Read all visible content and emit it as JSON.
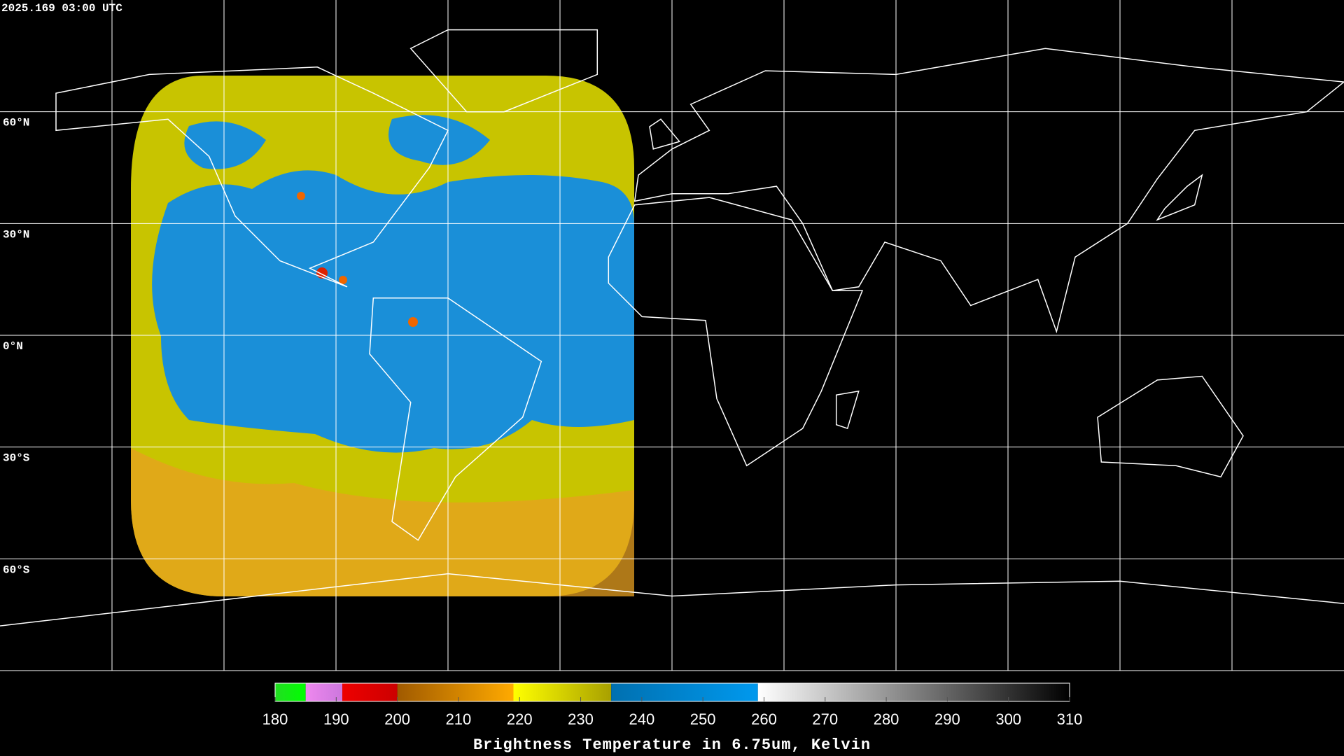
{
  "header": {
    "timestamp": "2025.169 03:00 UTC"
  },
  "map": {
    "lat_grid": [
      {
        "value": 60,
        "label": "60°N"
      },
      {
        "value": 30,
        "label": "30°N"
      },
      {
        "value": 0,
        "label": "0°N"
      },
      {
        "value": -30,
        "label": "30°S"
      },
      {
        "value": -60,
        "label": "60°S"
      }
    ],
    "lon_grid": [
      -150,
      -120,
      -90,
      -60,
      -30,
      0,
      30,
      60,
      90,
      120,
      150
    ],
    "lonlim": [
      -180,
      180
    ],
    "latlim": [
      -90,
      90
    ]
  },
  "colorbar": {
    "title": "Brightness Temperature in 6.75um, Kelvin",
    "range": [
      180,
      310
    ],
    "ticks": [
      180,
      190,
      200,
      210,
      220,
      230,
      240,
      250,
      260,
      270,
      280,
      290,
      300,
      310
    ],
    "segments": [
      {
        "from": 180,
        "to": 185,
        "colors": [
          "#22dd22",
          "#00ff00"
        ]
      },
      {
        "from": 185,
        "to": 191,
        "colors": [
          "#ee88ee",
          "#cc77dd"
        ]
      },
      {
        "from": 191,
        "to": 200,
        "colors": [
          "#ee0000",
          "#cc0000"
        ]
      },
      {
        "from": 200,
        "to": 219,
        "colors": [
          "#a05a00",
          "#ffaa00"
        ]
      },
      {
        "from": 219,
        "to": 235,
        "colors": [
          "#ffff00",
          "#a8a000"
        ]
      },
      {
        "from": 235,
        "to": 259,
        "colors": [
          "#0070b0",
          "#0099ee"
        ]
      },
      {
        "from": 259,
        "to": 310,
        "colors": [
          "#ffffff",
          "#000000"
        ]
      }
    ]
  }
}
